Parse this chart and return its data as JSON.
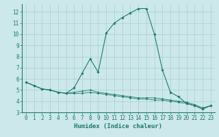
{
  "title": "",
  "xlabel": "Humidex (Indice chaleur)",
  "ylabel": "",
  "bg_color": "#cce8ea",
  "grid_color": "#aaccce",
  "line_color": "#1a7a6e",
  "xlim": [
    -0.5,
    23.5
  ],
  "ylim": [
    3,
    12.7
  ],
  "yticks": [
    3,
    4,
    5,
    6,
    7,
    8,
    9,
    10,
    11,
    12
  ],
  "xticks": [
    0,
    1,
    2,
    3,
    4,
    5,
    6,
    7,
    8,
    9,
    10,
    11,
    12,
    13,
    14,
    15,
    16,
    17,
    18,
    19,
    20,
    21,
    22,
    23
  ],
  "series1_x": [
    0,
    1,
    2,
    3,
    4,
    5,
    6,
    7,
    8,
    9,
    10,
    11,
    12,
    13,
    14,
    15,
    16,
    17,
    18,
    19,
    20,
    21,
    22,
    23
  ],
  "series1_y": [
    5.7,
    5.4,
    5.1,
    5.0,
    4.8,
    4.7,
    5.2,
    6.5,
    7.8,
    6.6,
    10.1,
    11.0,
    11.5,
    11.9,
    12.3,
    12.3,
    10.0,
    6.8,
    4.8,
    4.4,
    3.8,
    3.6,
    3.3,
    3.6
  ],
  "series2_x": [
    0,
    1,
    2,
    3,
    4,
    5,
    6,
    7,
    8,
    9,
    10,
    11,
    12,
    13,
    14,
    15,
    16,
    17,
    18,
    19,
    20,
    21,
    22,
    23
  ],
  "series2_y": [
    5.7,
    5.4,
    5.1,
    5.0,
    4.8,
    4.7,
    4.7,
    4.7,
    4.8,
    4.7,
    4.6,
    4.5,
    4.4,
    4.3,
    4.2,
    4.2,
    4.1,
    4.1,
    4.0,
    3.9,
    3.8,
    3.6,
    3.3,
    3.6
  ],
  "series3_x": [
    0,
    1,
    2,
    3,
    4,
    5,
    6,
    7,
    8,
    9,
    10,
    11,
    12,
    13,
    14,
    15,
    16,
    17,
    18,
    19,
    20,
    21,
    22,
    23
  ],
  "series3_y": [
    5.7,
    5.4,
    5.1,
    5.0,
    4.8,
    4.7,
    4.8,
    4.9,
    5.0,
    4.8,
    4.7,
    4.6,
    4.5,
    4.4,
    4.3,
    4.3,
    4.3,
    4.2,
    4.1,
    4.0,
    3.9,
    3.7,
    3.4,
    3.6
  ],
  "tick_fontsize": 5.5,
  "xlabel_fontsize": 6.5
}
